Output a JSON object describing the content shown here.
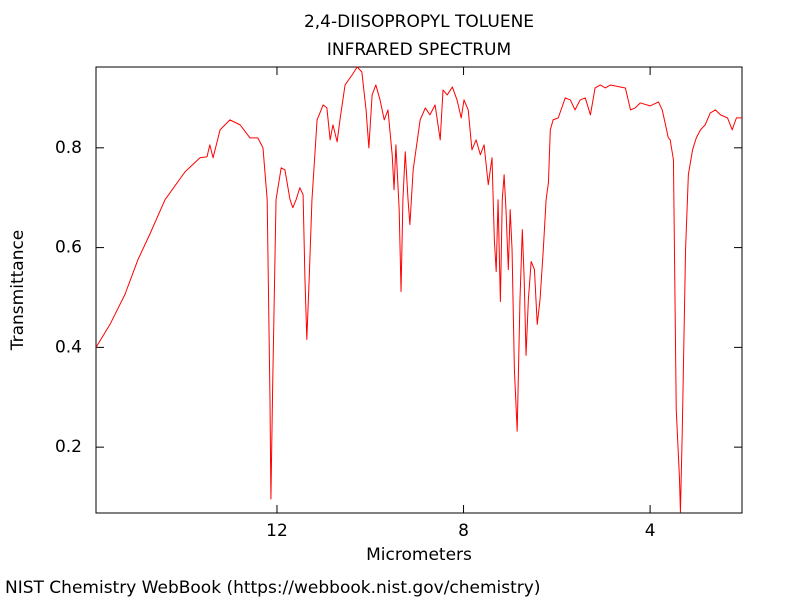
{
  "chart_data": {
    "type": "line",
    "title": "2,4-DIISOPROPYL TOLUENE",
    "subtitle": "INFRARED SPECTRUM",
    "x_label": "Micrometers",
    "y_label": "Transmittance",
    "source": "NIST Chemistry WebBook (https://webbook.nist.gov/chemistry)",
    "color": "#ff0000",
    "xlim": [
      15.88,
      2.03
    ],
    "ylim": [
      0.068,
      0.962
    ],
    "xticks": [
      12,
      8,
      4
    ],
    "yticks": [
      0.2,
      0.4,
      0.6,
      0.8
    ],
    "x": [
      15.88,
      15.58,
      15.26,
      14.98,
      14.73,
      14.4,
      13.97,
      13.65,
      13.5,
      13.44,
      13.37,
      13.22,
      13.01,
      12.79,
      12.58,
      12.41,
      12.3,
      12.21,
      12.15,
      12.13,
      12.09,
      12.02,
      11.91,
      11.83,
      11.72,
      11.66,
      11.59,
      11.51,
      11.44,
      11.4,
      11.36,
      11.31,
      11.25,
      11.14,
      11.01,
      10.93,
      10.86,
      10.8,
      10.71,
      10.65,
      10.54,
      10.39,
      10.28,
      10.18,
      10.09,
      10.03,
      9.96,
      9.88,
      9.79,
      9.7,
      9.62,
      9.53,
      9.49,
      9.45,
      9.38,
      9.34,
      9.3,
      9.25,
      9.19,
      9.15,
      9.08,
      9.02,
      8.93,
      8.82,
      8.72,
      8.61,
      8.5,
      8.44,
      8.35,
      8.24,
      8.14,
      8.05,
      7.99,
      7.9,
      7.82,
      7.73,
      7.64,
      7.56,
      7.47,
      7.39,
      7.34,
      7.3,
      7.26,
      7.21,
      7.17,
      7.13,
      7.09,
      7.04,
      7.0,
      6.96,
      6.91,
      6.85,
      6.79,
      6.74,
      6.7,
      6.66,
      6.61,
      6.55,
      6.48,
      6.42,
      6.36,
      6.29,
      6.23,
      6.18,
      6.14,
      6.08,
      5.97,
      5.82,
      5.71,
      5.61,
      5.5,
      5.39,
      5.28,
      5.18,
      5.07,
      4.96,
      4.85,
      4.64,
      4.53,
      4.42,
      4.32,
      4.21,
      4.0,
      3.82,
      3.74,
      3.67,
      3.61,
      3.57,
      3.5,
      3.44,
      3.37,
      3.35,
      3.31,
      3.24,
      3.18,
      3.09,
      3.01,
      2.92,
      2.82,
      2.71,
      2.6,
      2.49,
      2.34,
      2.24,
      2.15,
      2.06,
      2.03
    ],
    "values": [
      0.4,
      0.446,
      0.506,
      0.576,
      0.626,
      0.696,
      0.752,
      0.78,
      0.782,
      0.806,
      0.78,
      0.836,
      0.856,
      0.846,
      0.82,
      0.82,
      0.8,
      0.696,
      0.296,
      0.096,
      0.336,
      0.696,
      0.76,
      0.756,
      0.696,
      0.68,
      0.696,
      0.72,
      0.706,
      0.536,
      0.416,
      0.536,
      0.696,
      0.856,
      0.886,
      0.88,
      0.816,
      0.846,
      0.812,
      0.856,
      0.926,
      0.946,
      0.962,
      0.952,
      0.876,
      0.8,
      0.906,
      0.926,
      0.896,
      0.856,
      0.876,
      0.786,
      0.716,
      0.806,
      0.676,
      0.512,
      0.696,
      0.792,
      0.696,
      0.646,
      0.756,
      0.796,
      0.856,
      0.88,
      0.866,
      0.886,
      0.816,
      0.916,
      0.906,
      0.922,
      0.896,
      0.86,
      0.896,
      0.876,
      0.796,
      0.816,
      0.786,
      0.806,
      0.726,
      0.78,
      0.616,
      0.552,
      0.696,
      0.492,
      0.696,
      0.746,
      0.676,
      0.556,
      0.676,
      0.596,
      0.356,
      0.232,
      0.496,
      0.636,
      0.536,
      0.384,
      0.496,
      0.572,
      0.556,
      0.446,
      0.496,
      0.596,
      0.696,
      0.73,
      0.836,
      0.856,
      0.86,
      0.9,
      0.896,
      0.876,
      0.896,
      0.9,
      0.866,
      0.92,
      0.926,
      0.92,
      0.926,
      0.922,
      0.92,
      0.876,
      0.88,
      0.89,
      0.884,
      0.892,
      0.876,
      0.846,
      0.82,
      0.816,
      0.776,
      0.276,
      0.136,
      0.07,
      0.236,
      0.596,
      0.746,
      0.796,
      0.82,
      0.836,
      0.846,
      0.87,
      0.876,
      0.866,
      0.86,
      0.836,
      0.86,
      0.86,
      0.86
    ]
  }
}
